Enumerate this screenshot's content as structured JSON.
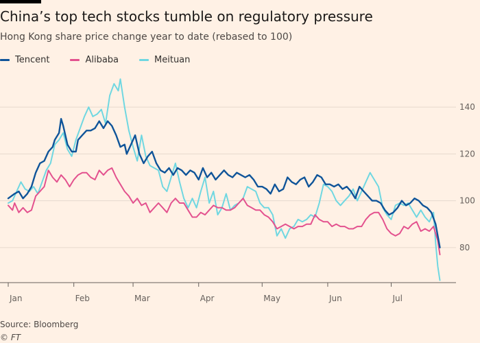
{
  "header": {
    "title": "China’s top tech stocks tumble on regulatory pressure",
    "subtitle": "Hong Kong share price change year to date (rebased to 100)"
  },
  "footer": {
    "source": "Source: Bloomberg",
    "credit": "© FT"
  },
  "colors": {
    "tencent": "#0f5499",
    "alibaba": "#e3518e",
    "meituan": "#6fd7e1",
    "grid": "#e6d9ce",
    "axis": "#66605c"
  },
  "chart_data": {
    "type": "line",
    "title": "China’s top tech stocks tumble on regulatory pressure",
    "subtitle": "Hong Kong share price change year to date (rebased to 100)",
    "xlabel": "",
    "ylabel": "",
    "x_domain": [
      0,
      210
    ],
    "ylim": [
      65,
      155
    ],
    "x_ticks": [
      {
        "label": "Jan",
        "day": 0
      },
      {
        "label": "Feb",
        "day": 31
      },
      {
        "label": "Mar",
        "day": 59
      },
      {
        "label": "Apr",
        "day": 90
      },
      {
        "label": "May",
        "day": 120
      },
      {
        "label": "Jun",
        "day": 151
      },
      {
        "label": "Jul",
        "day": 181
      }
    ],
    "y_ticks": [
      80,
      100,
      120,
      140
    ],
    "grid": true,
    "legend": "top-left",
    "series": [
      {
        "name": "Tencent",
        "key": "tencent",
        "points": [
          [
            0,
            101
          ],
          [
            3,
            103
          ],
          [
            5,
            104
          ],
          [
            7,
            101
          ],
          [
            9,
            103
          ],
          [
            11,
            106
          ],
          [
            13,
            112
          ],
          [
            15,
            116
          ],
          [
            17,
            117
          ],
          [
            19,
            121
          ],
          [
            21,
            123
          ],
          [
            22,
            126
          ],
          [
            24,
            129
          ],
          [
            25,
            135
          ],
          [
            26,
            132
          ],
          [
            28,
            124
          ],
          [
            30,
            121
          ],
          [
            32,
            121
          ],
          [
            33,
            126
          ],
          [
            35,
            128
          ],
          [
            37,
            130
          ],
          [
            39,
            130
          ],
          [
            41,
            131
          ],
          [
            43,
            134
          ],
          [
            45,
            131
          ],
          [
            47,
            134
          ],
          [
            49,
            132
          ],
          [
            51,
            128
          ],
          [
            53,
            123
          ],
          [
            55,
            124
          ],
          [
            56,
            120
          ],
          [
            58,
            124
          ],
          [
            60,
            128
          ],
          [
            62,
            120
          ],
          [
            64,
            116
          ],
          [
            66,
            119
          ],
          [
            68,
            121
          ],
          [
            70,
            116
          ],
          [
            72,
            113
          ],
          [
            74,
            112
          ],
          [
            76,
            114
          ],
          [
            78,
            111
          ],
          [
            80,
            114
          ],
          [
            82,
            113
          ],
          [
            84,
            111
          ],
          [
            86,
            113
          ],
          [
            88,
            112
          ],
          [
            90,
            109
          ],
          [
            92,
            114
          ],
          [
            94,
            110
          ],
          [
            96,
            112
          ],
          [
            98,
            109
          ],
          [
            100,
            111
          ],
          [
            102,
            113
          ],
          [
            104,
            111
          ],
          [
            106,
            110
          ],
          [
            108,
            112
          ],
          [
            110,
            111
          ],
          [
            112,
            110
          ],
          [
            114,
            111
          ],
          [
            116,
            109
          ],
          [
            118,
            106
          ],
          [
            120,
            106
          ],
          [
            122,
            105
          ],
          [
            124,
            103
          ],
          [
            126,
            107
          ],
          [
            128,
            104
          ],
          [
            130,
            105
          ],
          [
            132,
            110
          ],
          [
            134,
            108
          ],
          [
            136,
            107
          ],
          [
            138,
            109
          ],
          [
            140,
            110
          ],
          [
            142,
            106
          ],
          [
            144,
            108
          ],
          [
            146,
            111
          ],
          [
            148,
            110
          ],
          [
            150,
            107
          ],
          [
            152,
            107
          ],
          [
            154,
            106
          ],
          [
            156,
            107
          ],
          [
            158,
            105
          ],
          [
            160,
            106
          ],
          [
            162,
            104
          ],
          [
            164,
            101
          ],
          [
            166,
            106
          ],
          [
            168,
            104
          ],
          [
            170,
            102
          ],
          [
            172,
            100
          ],
          [
            174,
            100
          ],
          [
            176,
            99
          ],
          [
            178,
            96
          ],
          [
            180,
            94
          ],
          [
            182,
            95
          ],
          [
            184,
            97
          ],
          [
            186,
            100
          ],
          [
            188,
            98
          ],
          [
            190,
            99
          ],
          [
            192,
            101
          ],
          [
            194,
            100
          ],
          [
            196,
            98
          ],
          [
            198,
            97
          ],
          [
            200,
            95
          ],
          [
            202,
            90
          ],
          [
            204,
            80
          ]
        ]
      },
      {
        "name": "Alibaba",
        "key": "alibaba",
        "points": [
          [
            0,
            98
          ],
          [
            2,
            96
          ],
          [
            3,
            99
          ],
          [
            5,
            95
          ],
          [
            7,
            97
          ],
          [
            9,
            95
          ],
          [
            11,
            96
          ],
          [
            13,
            102
          ],
          [
            15,
            104
          ],
          [
            17,
            106
          ],
          [
            19,
            113
          ],
          [
            21,
            110
          ],
          [
            23,
            108
          ],
          [
            25,
            111
          ],
          [
            27,
            109
          ],
          [
            29,
            106
          ],
          [
            31,
            109
          ],
          [
            33,
            111
          ],
          [
            35,
            112
          ],
          [
            37,
            112
          ],
          [
            39,
            110
          ],
          [
            41,
            109
          ],
          [
            43,
            113
          ],
          [
            45,
            111
          ],
          [
            47,
            113
          ],
          [
            49,
            114
          ],
          [
            51,
            110
          ],
          [
            53,
            107
          ],
          [
            55,
            104
          ],
          [
            57,
            102
          ],
          [
            59,
            99
          ],
          [
            61,
            101
          ],
          [
            63,
            98
          ],
          [
            65,
            99
          ],
          [
            67,
            95
          ],
          [
            69,
            97
          ],
          [
            71,
            99
          ],
          [
            73,
            97
          ],
          [
            75,
            95
          ],
          [
            77,
            99
          ],
          [
            79,
            101
          ],
          [
            81,
            99
          ],
          [
            83,
            99
          ],
          [
            85,
            96
          ],
          [
            87,
            93
          ],
          [
            89,
            93
          ],
          [
            91,
            95
          ],
          [
            93,
            94
          ],
          [
            95,
            96
          ],
          [
            97,
            98
          ],
          [
            99,
            97
          ],
          [
            101,
            97
          ],
          [
            103,
            96
          ],
          [
            105,
            96
          ],
          [
            107,
            97
          ],
          [
            109,
            99
          ],
          [
            111,
            101
          ],
          [
            113,
            98
          ],
          [
            115,
            97
          ],
          [
            117,
            96
          ],
          [
            119,
            96
          ],
          [
            121,
            94
          ],
          [
            123,
            93
          ],
          [
            125,
            91
          ],
          [
            127,
            88
          ],
          [
            129,
            89
          ],
          [
            131,
            90
          ],
          [
            133,
            89
          ],
          [
            135,
            88
          ],
          [
            137,
            89
          ],
          [
            139,
            89
          ],
          [
            141,
            90
          ],
          [
            143,
            90
          ],
          [
            145,
            94
          ],
          [
            147,
            92
          ],
          [
            149,
            91
          ],
          [
            151,
            91
          ],
          [
            153,
            89
          ],
          [
            155,
            90
          ],
          [
            157,
            89
          ],
          [
            159,
            89
          ],
          [
            161,
            88
          ],
          [
            163,
            88
          ],
          [
            165,
            89
          ],
          [
            167,
            89
          ],
          [
            169,
            92
          ],
          [
            171,
            94
          ],
          [
            173,
            95
          ],
          [
            175,
            95
          ],
          [
            177,
            92
          ],
          [
            179,
            88
          ],
          [
            181,
            86
          ],
          [
            183,
            85
          ],
          [
            185,
            86
          ],
          [
            187,
            89
          ],
          [
            189,
            88
          ],
          [
            191,
            90
          ],
          [
            193,
            91
          ],
          [
            195,
            87
          ],
          [
            197,
            88
          ],
          [
            199,
            87
          ],
          [
            201,
            89
          ],
          [
            203,
            83
          ],
          [
            204,
            77
          ]
        ]
      },
      {
        "name": "Meituan",
        "key": "meituan",
        "points": [
          [
            0,
            99
          ],
          [
            2,
            100
          ],
          [
            4,
            104
          ],
          [
            6,
            108
          ],
          [
            8,
            105
          ],
          [
            10,
            104
          ],
          [
            12,
            106
          ],
          [
            14,
            103
          ],
          [
            16,
            108
          ],
          [
            18,
            113
          ],
          [
            20,
            116
          ],
          [
            22,
            124
          ],
          [
            24,
            126
          ],
          [
            26,
            129
          ],
          [
            28,
            122
          ],
          [
            30,
            119
          ],
          [
            32,
            126
          ],
          [
            34,
            131
          ],
          [
            36,
            136
          ],
          [
            38,
            140
          ],
          [
            40,
            136
          ],
          [
            42,
            137
          ],
          [
            44,
            139
          ],
          [
            46,
            133
          ],
          [
            48,
            145
          ],
          [
            50,
            150
          ],
          [
            52,
            147
          ],
          [
            53,
            152
          ],
          [
            55,
            140
          ],
          [
            57,
            130
          ],
          [
            59,
            123
          ],
          [
            61,
            117
          ],
          [
            63,
            128
          ],
          [
            65,
            119
          ],
          [
            67,
            115
          ],
          [
            69,
            114
          ],
          [
            71,
            113
          ],
          [
            73,
            106
          ],
          [
            75,
            104
          ],
          [
            77,
            110
          ],
          [
            79,
            116
          ],
          [
            81,
            108
          ],
          [
            83,
            101
          ],
          [
            85,
            97
          ],
          [
            87,
            101
          ],
          [
            89,
            97
          ],
          [
            91,
            104
          ],
          [
            93,
            110
          ],
          [
            95,
            99
          ],
          [
            97,
            104
          ],
          [
            99,
            94
          ],
          [
            101,
            97
          ],
          [
            103,
            103
          ],
          [
            105,
            96
          ],
          [
            107,
            98
          ],
          [
            109,
            99
          ],
          [
            111,
            101
          ],
          [
            113,
            106
          ],
          [
            115,
            105
          ],
          [
            117,
            104
          ],
          [
            119,
            99
          ],
          [
            121,
            97
          ],
          [
            123,
            97
          ],
          [
            125,
            94
          ],
          [
            127,
            85
          ],
          [
            129,
            88
          ],
          [
            131,
            84
          ],
          [
            133,
            88
          ],
          [
            135,
            89
          ],
          [
            137,
            92
          ],
          [
            139,
            91
          ],
          [
            141,
            92
          ],
          [
            143,
            94
          ],
          [
            145,
            93
          ],
          [
            147,
            99
          ],
          [
            149,
            107
          ],
          [
            151,
            106
          ],
          [
            153,
            104
          ],
          [
            155,
            100
          ],
          [
            157,
            98
          ],
          [
            159,
            100
          ],
          [
            161,
            102
          ],
          [
            163,
            105
          ],
          [
            165,
            100
          ],
          [
            167,
            104
          ],
          [
            169,
            108
          ],
          [
            171,
            112
          ],
          [
            173,
            109
          ],
          [
            175,
            106
          ],
          [
            177,
            97
          ],
          [
            179,
            94
          ],
          [
            181,
            92
          ],
          [
            183,
            98
          ],
          [
            185,
            99
          ],
          [
            187,
            98
          ],
          [
            189,
            99
          ],
          [
            191,
            96
          ],
          [
            193,
            93
          ],
          [
            195,
            96
          ],
          [
            197,
            93
          ],
          [
            199,
            91
          ],
          [
            201,
            95
          ],
          [
            202,
            82
          ],
          [
            203,
            72
          ],
          [
            204,
            66
          ]
        ]
      }
    ]
  }
}
